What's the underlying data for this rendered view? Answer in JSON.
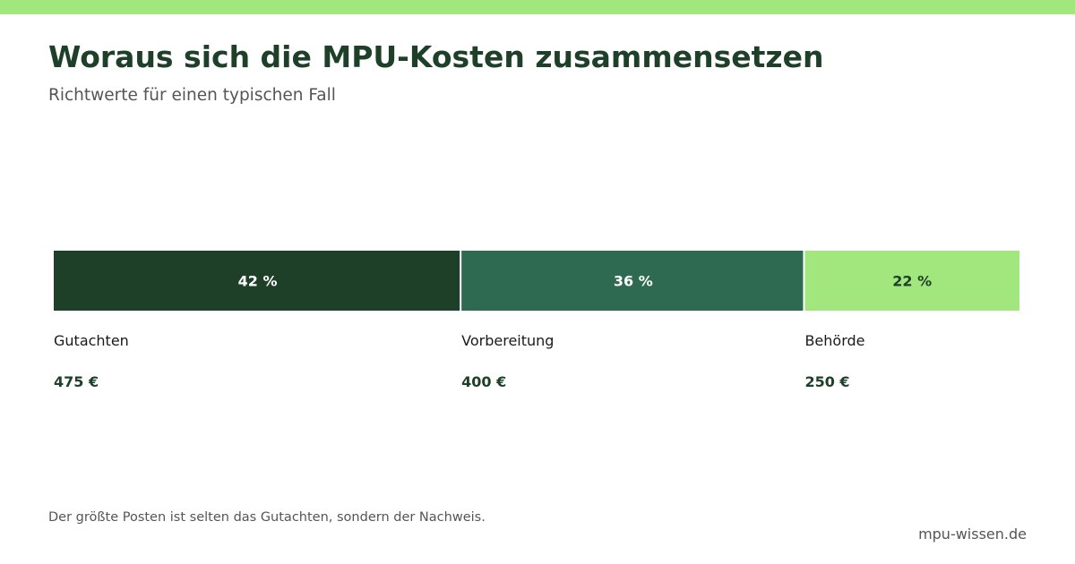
{
  "header": {
    "title": "Woraus sich die MPU-Kosten zusammensetzen",
    "subtitle": "Richtwerte für einen typischen Fall"
  },
  "footer": {
    "note": "Der größte Posten ist selten das Gutachten, sondern der Nachweis.",
    "source": "mpu-wissen.de"
  },
  "colors": {
    "accent": "#a2e67e",
    "dark": "#1e4029",
    "mid": "#2e6a51",
    "light": "#a2e67e",
    "title": "#1e4029",
    "muted": "#555555",
    "label": "#1a1a1a"
  },
  "chart_data": {
    "type": "bar",
    "orientation": "stacked-horizontal",
    "categories": [
      "Gutachten",
      "Vorbereitung",
      "Behörde"
    ],
    "values": [
      475,
      400,
      250
    ],
    "value_labels": [
      "475 €",
      "400 €",
      "250 €"
    ],
    "percent_labels": [
      "42 %",
      "36 %",
      "22 %"
    ],
    "unit": "€",
    "colors": [
      "#1e4029",
      "#2e6a51",
      "#a2e67e"
    ],
    "label_colors": [
      "#ffffff",
      "#ffffff",
      "#1e4029"
    ]
  }
}
